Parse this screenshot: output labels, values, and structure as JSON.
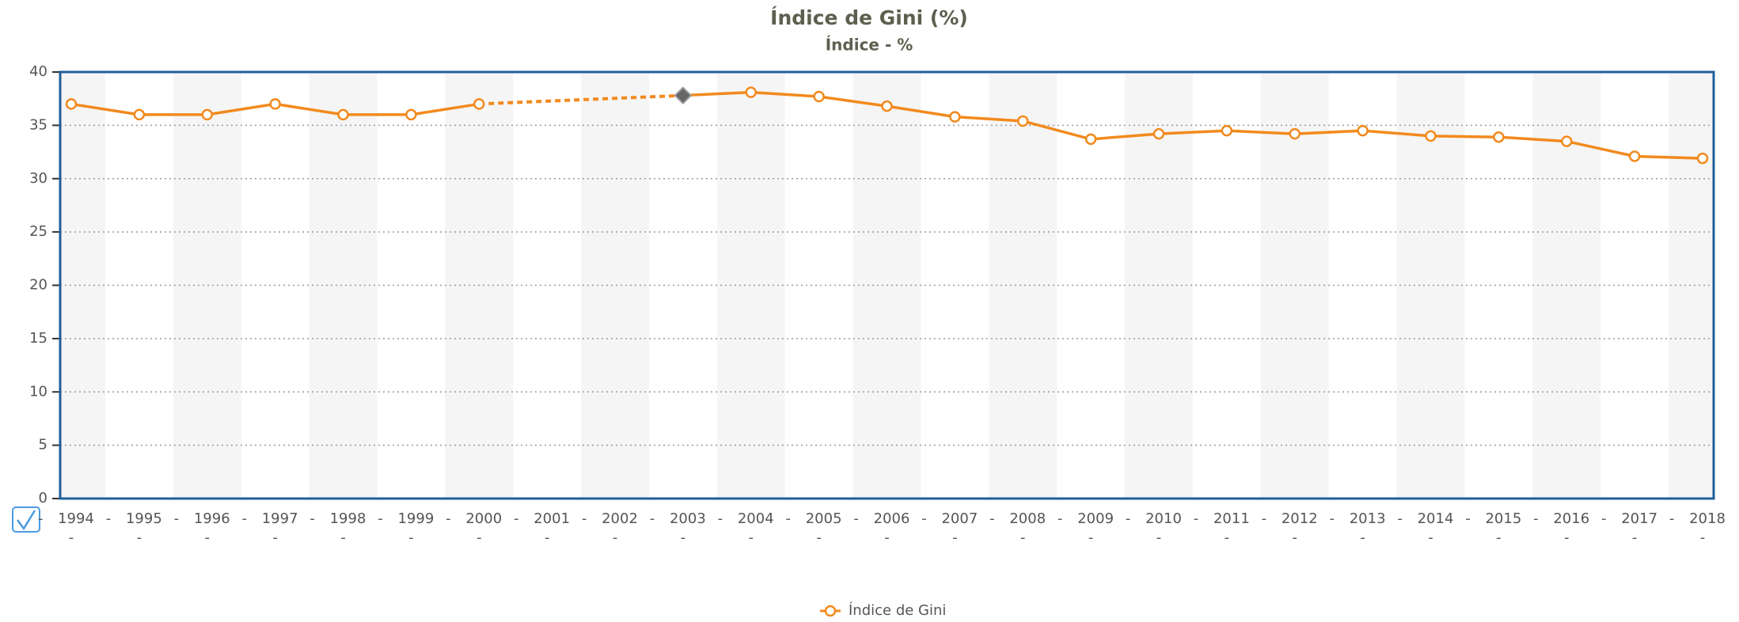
{
  "chart_data": {
    "type": "line",
    "title": "Índice de Gini (%)",
    "subtitle": "Índice - %",
    "categories": [
      "1994",
      "1995",
      "1996",
      "1997",
      "1998",
      "1999",
      "2000",
      "2001",
      "2002",
      "2003",
      "2004",
      "2005",
      "2006",
      "2007",
      "2008",
      "2009",
      "2010",
      "2011",
      "2012",
      "2013",
      "2014",
      "2015",
      "2016",
      "2017",
      "2018"
    ],
    "series": [
      {
        "name": "Índice de Gini",
        "color": "#f28a1e",
        "values": [
          37,
          36,
          36,
          37,
          36,
          36,
          37,
          null,
          null,
          37.8,
          38.1,
          37.7,
          36.8,
          35.8,
          35.4,
          33.7,
          34.2,
          34.5,
          34.2,
          34.5,
          34.0,
          33.9,
          33.5,
          32.1,
          31.9
        ]
      }
    ],
    "ylim": [
      0,
      40
    ],
    "yticks": [
      0,
      5,
      10,
      15,
      20,
      25,
      30,
      35,
      40
    ],
    "grid": true,
    "legend": "bottom"
  }
}
